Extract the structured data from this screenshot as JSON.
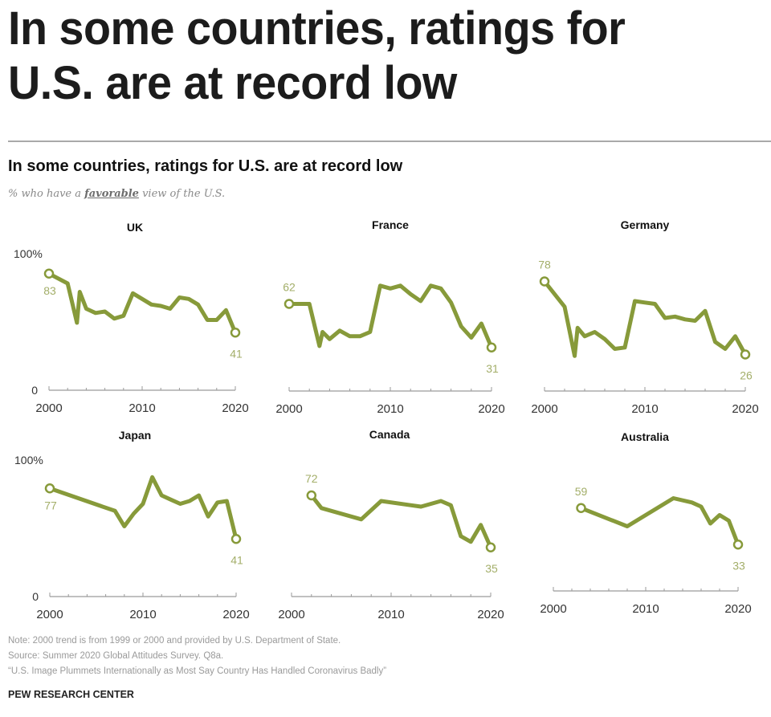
{
  "headline": [
    "In some countries, ratings for",
    "U.S. are at record low"
  ],
  "chart_header": {
    "title": "In some countries, ratings for U.S. are at record low",
    "subtitle_before": "% who have a ",
    "subtitle_emph": "favorable",
    "subtitle_after": " view of the U.S."
  },
  "colors": {
    "line": "#879a3a",
    "label": "#a3ae69",
    "axis": "#9a9a9a",
    "text": "#222222"
  },
  "chart_data": [
    {
      "type": "line",
      "title": "UK",
      "xlim": [
        2000,
        2020
      ],
      "ylim": [
        0,
        100
      ],
      "y_tick_labels": [
        "0",
        "100%"
      ],
      "x_tick_labels": [
        "2000",
        "2010",
        "2020"
      ],
      "x": [
        2000,
        2002,
        2003,
        2003.3,
        2004,
        2005,
        2006,
        2007,
        2008,
        2009,
        2010,
        2011,
        2012,
        2013,
        2014,
        2015,
        2016,
        2017,
        2018,
        2019,
        2020
      ],
      "values": [
        83,
        76,
        48,
        70,
        58,
        55,
        56,
        51,
        53,
        69,
        65,
        61,
        60,
        58,
        66,
        65,
        61,
        50,
        50,
        57,
        41
      ],
      "start_label": "83",
      "end_label": "41"
    },
    {
      "type": "line",
      "title": "France",
      "xlim": [
        2000,
        2020
      ],
      "ylim": [
        0,
        100
      ],
      "x_tick_labels": [
        "2000",
        "2010",
        "2020"
      ],
      "x": [
        2000,
        2002,
        2003,
        2003.3,
        2004,
        2005,
        2006,
        2007,
        2008,
        2009,
        2010,
        2011,
        2012,
        2013,
        2014,
        2015,
        2016,
        2017,
        2018,
        2019,
        2020
      ],
      "values": [
        62,
        62,
        32,
        42,
        37,
        43,
        39,
        39,
        42,
        75,
        73,
        75,
        69,
        64,
        75,
        73,
        63,
        46,
        38,
        48,
        31
      ],
      "start_label": "62",
      "end_label": "31"
    },
    {
      "type": "line",
      "title": "Germany",
      "xlim": [
        2000,
        2020
      ],
      "ylim": [
        0,
        100
      ],
      "x_tick_labels": [
        "2000",
        "2010",
        "2020"
      ],
      "x": [
        2000,
        2002,
        2003,
        2003.3,
        2004,
        2005,
        2006,
        2007,
        2008,
        2009,
        2010,
        2011,
        2012,
        2013,
        2014,
        2015,
        2016,
        2017,
        2018,
        2019,
        2020
      ],
      "values": [
        78,
        60,
        25,
        45,
        39,
        42,
        37,
        30,
        31,
        64,
        63,
        62,
        52,
        53,
        51,
        50,
        57,
        35,
        30,
        39,
        26
      ],
      "start_label": "78",
      "end_label": "26"
    },
    {
      "type": "line",
      "title": "Japan",
      "xlim": [
        2000,
        2020
      ],
      "ylim": [
        0,
        100
      ],
      "y_tick_labels": [
        "0",
        "100%"
      ],
      "x_tick_labels": [
        "2000",
        "2010",
        "2020"
      ],
      "x": [
        2000,
        2007,
        2008,
        2009,
        2010,
        2011,
        2012,
        2013,
        2014,
        2015,
        2016,
        2017,
        2018,
        2019,
        2020
      ],
      "values": [
        77,
        61,
        50,
        59,
        66,
        85,
        72,
        69,
        66,
        68,
        72,
        57,
        67,
        68,
        41
      ],
      "start_label": "77",
      "end_label": "41"
    },
    {
      "type": "line",
      "title": "Canada",
      "xlim": [
        2000,
        2020
      ],
      "ylim": [
        0,
        100
      ],
      "x_tick_labels": [
        "2000",
        "2010",
        "2020"
      ],
      "x": [
        2002,
        2003,
        2007,
        2009,
        2013,
        2015,
        2016,
        2017,
        2018,
        2019,
        2020
      ],
      "values": [
        72,
        63,
        55,
        68,
        64,
        68,
        65,
        43,
        39,
        51,
        35
      ],
      "start_label": "72",
      "end_label": "35"
    },
    {
      "type": "line",
      "title": "Australia",
      "xlim": [
        2000,
        2020
      ],
      "ylim": [
        0,
        100
      ],
      "x_tick_labels": [
        "2000",
        "2010",
        "2020"
      ],
      "x": [
        2003,
        2008,
        2013,
        2015,
        2016,
        2017,
        2018,
        2019,
        2020
      ],
      "values": [
        59,
        46,
        66,
        63,
        60,
        48,
        54,
        50,
        33
      ],
      "start_label": "59",
      "end_label": "33"
    }
  ],
  "footer": {
    "note": "Note: 2000 trend is from 1999 or 2000 and provided by U.S. Department of State.",
    "source": "Source: Summer 2020 Global Attitudes Survey. Q8a.",
    "report": "“U.S. Image Plummets Internationally as Most Say Country Has Handled Coronavirus Badly”",
    "brand": "PEW RESEARCH CENTER"
  }
}
